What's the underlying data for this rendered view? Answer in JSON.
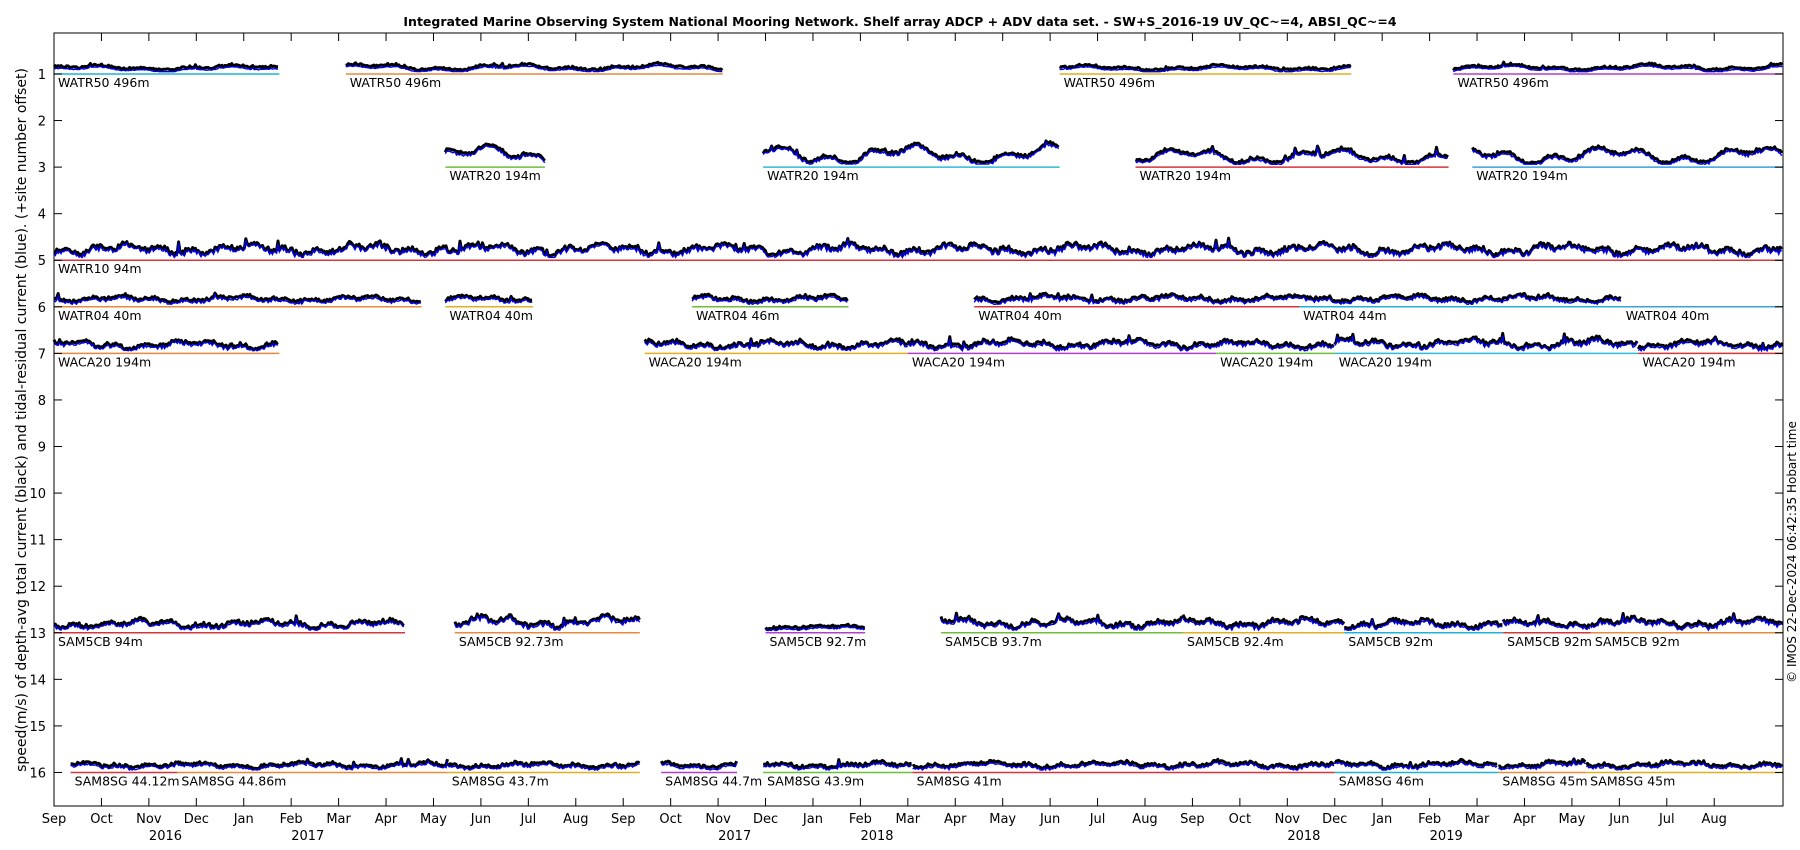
{
  "chart_data": {
    "type": "line",
    "title": "Integrated Marine Observing System National Mooring Network. Shelf array ADCP + ADV data set. - SW+S_2016-19 UV_QC~=4, ABSI_QC~=4",
    "xlabel": "",
    "ylabel": "speed(m/s) of depth-avg total current (black) and tidal-residual current (blue). (+site number offset)",
    "credit": "© IMOS 22-Dec-2024 06:42:35 Hobart time",
    "x_axis": {
      "start": "2016-09-01",
      "months": [
        "Sep",
        "Oct",
        "Nov",
        "Dec",
        "Jan",
        "Feb",
        "Mar",
        "Apr",
        "May",
        "Jun",
        "Jul",
        "Aug",
        "Sep",
        "Oct",
        "Nov",
        "Dec",
        "Jan",
        "Feb",
        "Mar",
        "Apr",
        "May",
        "Jun",
        "Jul",
        "Aug",
        "Sep",
        "Oct",
        "Nov",
        "Dec",
        "Jan",
        "Feb",
        "Mar",
        "Apr",
        "May",
        "Jun",
        "Jul",
        "Aug"
      ],
      "years": [
        {
          "label": "2016",
          "month_index": 2.35
        },
        {
          "label": "2017",
          "month_index": 5.35
        },
        {
          "label": "2017",
          "month_index": 14.35
        },
        {
          "label": "2018",
          "month_index": 17.35
        },
        {
          "label": "2018",
          "month_index": 26.35
        },
        {
          "label": "2019",
          "month_index": 29.35
        }
      ],
      "xlim_months": [
        0,
        36.45
      ]
    },
    "y_axis": {
      "ticks": [
        "1",
        "2",
        "3",
        "4",
        "5",
        "6",
        "7",
        "8",
        "9",
        "10",
        "11",
        "12",
        "13",
        "14",
        "15",
        "16"
      ],
      "ylim": [
        0.12,
        16.72
      ],
      "reversed": true
    },
    "grid": false,
    "deployments": [
      {
        "site": 1,
        "label": "WATR50 496m",
        "start": 0.0,
        "end": 4.75,
        "color": "#1cb3d8",
        "amp": 0.12,
        "smooth": true
      },
      {
        "site": 1,
        "label": "WATR50 496m",
        "start": 6.15,
        "end": 14.1,
        "color": "#e8893c",
        "amp": 0.15,
        "smooth": true
      },
      {
        "site": 1,
        "label": "WATR50 496m",
        "start": 21.2,
        "end": 27.35,
        "color": "#e0b020",
        "amp": 0.12,
        "smooth": true
      },
      {
        "site": 1,
        "label": "WATR50 496m",
        "start": 29.5,
        "end": 36.45,
        "color": "#b040c8",
        "amp": 0.14,
        "smooth": true
      },
      {
        "site": 3,
        "label": "WATR20 194m",
        "start": 8.25,
        "end": 10.35,
        "color": "#6cbf3a",
        "amp": 0.45,
        "smooth": true
      },
      {
        "site": 3,
        "label": "WATR20 194m",
        "start": 14.95,
        "end": 21.2,
        "color": "#2bbcd8",
        "amp": 0.45,
        "smooth": true
      },
      {
        "site": 3,
        "label": "WATR20 194m",
        "start": 22.8,
        "end": 29.4,
        "color": "#d8353a",
        "amp": 0.35,
        "smooth": true
      },
      {
        "site": 3,
        "label": "WATR20 194m",
        "start": 29.9,
        "end": 36.45,
        "color": "#3aa0d8",
        "amp": 0.4,
        "smooth": true
      },
      {
        "site": 5,
        "label": "WATR10 94m",
        "start": 0.0,
        "end": 36.45,
        "color": "#d8353a",
        "amp": 0.35,
        "smooth": false
      },
      {
        "site": 6,
        "label": "WATR04 40m",
        "start": 0.0,
        "end": 7.75,
        "color": "#e8893c",
        "amp": 0.2,
        "smooth": false
      },
      {
        "site": 6,
        "label": "WATR04 40m",
        "start": 8.25,
        "end": 10.1,
        "color": "#e0b020",
        "amp": 0.2,
        "smooth": false
      },
      {
        "site": 6,
        "label": "WATR04 46m",
        "start": 13.45,
        "end": 16.75,
        "color": "#6cbf3a",
        "amp": 0.2,
        "smooth": false
      },
      {
        "site": 6,
        "label": "WATR04 40m",
        "start": 19.4,
        "end": 33.05,
        "color": "#d8353a",
        "amp": 0.22,
        "smooth": false
      },
      {
        "site": 6,
        "label": "WATR04 44m",
        "start": 26.25,
        "end": 33.05,
        "color": "#1cb3d8",
        "amp": 0.0,
        "smooth": false
      },
      {
        "site": 6,
        "label": "WATR04 40m",
        "start": 33.05,
        "end": 36.45,
        "color": "#3aa0d8",
        "amp": 0.0,
        "smooth": false
      },
      {
        "site": 7,
        "label": "WACA20 194m",
        "start": 0.0,
        "end": 4.75,
        "color": "#e8893c",
        "amp": 0.25,
        "smooth": false
      },
      {
        "site": 7,
        "label": "WACA20 194m",
        "start": 12.45,
        "end": 18.0,
        "color": "#e0b020",
        "amp": 0.25,
        "smooth": false
      },
      {
        "site": 7,
        "label": "WACA20 194m",
        "start": 18.0,
        "end": 24.5,
        "color": "#b040c8",
        "amp": 0.28,
        "smooth": false
      },
      {
        "site": 7,
        "label": "WACA20 194m",
        "start": 24.5,
        "end": 27.0,
        "color": "#6cbf3a",
        "amp": 0.25,
        "smooth": false
      },
      {
        "site": 7,
        "label": "WACA20 194m",
        "start": 27.0,
        "end": 33.4,
        "color": "#2bbcd8",
        "amp": 0.3,
        "smooth": false
      },
      {
        "site": 7,
        "label": "WACA20 194m",
        "start": 33.4,
        "end": 36.45,
        "color": "#d8353a",
        "amp": 0.25,
        "smooth": false
      },
      {
        "site": 13,
        "label": "SAM5CB 94m",
        "start": 0.0,
        "end": 7.4,
        "color": "#d8353a",
        "amp": 0.25,
        "smooth": false
      },
      {
        "site": 13,
        "label": "SAM5CB 92.73m",
        "start": 8.45,
        "end": 12.35,
        "color": "#e8893c",
        "amp": 0.35,
        "smooth": false
      },
      {
        "site": 13,
        "label": "SAM5CB 92.7m",
        "start": 15.0,
        "end": 17.1,
        "color": "#b040c8",
        "amp": 0.1,
        "smooth": false
      },
      {
        "site": 13,
        "label": "SAM5CB 93.7m",
        "start": 18.7,
        "end": 23.8,
        "color": "#6cbf3a",
        "amp": 0.3,
        "smooth": false
      },
      {
        "site": 13,
        "label": "SAM5CB 92.4m",
        "start": 23.8,
        "end": 27.2,
        "color": "#e0b020",
        "amp": 0.3,
        "smooth": false
      },
      {
        "site": 13,
        "label": "SAM5CB 92m",
        "start": 27.2,
        "end": 30.55,
        "color": "#1cb3d8",
        "amp": 0.25,
        "smooth": false
      },
      {
        "site": 13,
        "label": "SAM5CB 92m",
        "start": 30.55,
        "end": 32.4,
        "color": "#d8353a",
        "amp": 0.25,
        "smooth": false
      },
      {
        "site": 13,
        "label": "SAM5CB 92m",
        "start": 32.4,
        "end": 36.45,
        "color": "#e8893c",
        "amp": 0.3,
        "smooth": false
      },
      {
        "site": 16,
        "label": "SAM8SG 44.12m",
        "start": 0.35,
        "end": 2.6,
        "color": "#d8353a",
        "amp": 0.18,
        "smooth": false
      },
      {
        "site": 16,
        "label": "SAM8SG 44.86m",
        "start": 2.6,
        "end": 8.3,
        "color": "#e8893c",
        "amp": 0.18,
        "smooth": false
      },
      {
        "site": 16,
        "label": "SAM8SG 43.7m",
        "start": 8.3,
        "end": 12.35,
        "color": "#e0b020",
        "amp": 0.18,
        "smooth": false
      },
      {
        "site": 16,
        "label": "SAM8SG 44.7m",
        "start": 12.8,
        "end": 14.4,
        "color": "#b040c8",
        "amp": 0.18,
        "smooth": false
      },
      {
        "site": 16,
        "label": "SAM8SG 43.9m",
        "start": 14.95,
        "end": 18.1,
        "color": "#6cbf3a",
        "amp": 0.18,
        "smooth": false
      },
      {
        "site": 16,
        "label": "SAM8SG 41m",
        "start": 18.1,
        "end": 27.0,
        "color": "#d8353a",
        "amp": 0.2,
        "smooth": false
      },
      {
        "site": 16,
        "label": "SAM8SG 46m",
        "start": 27.0,
        "end": 30.45,
        "color": "#1cb3d8",
        "amp": 0.2,
        "smooth": false
      },
      {
        "site": 16,
        "label": "SAM8SG 45m",
        "start": 30.45,
        "end": 32.3,
        "color": "#e8893c",
        "amp": 0.2,
        "smooth": false
      },
      {
        "site": 16,
        "label": "SAM8SG 45m",
        "start": 32.3,
        "end": 36.45,
        "color": "#e0b020",
        "amp": 0.2,
        "smooth": false
      }
    ],
    "series": [
      {
        "name": "total current",
        "color": "#000000"
      },
      {
        "name": "tidal-residual current",
        "color": "#0000ee"
      }
    ]
  }
}
